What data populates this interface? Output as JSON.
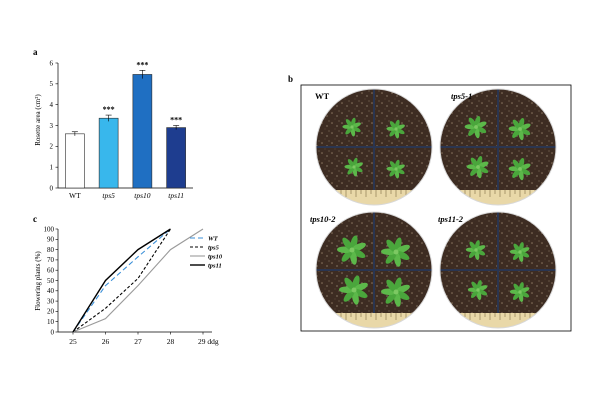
{
  "panels": {
    "a": "a",
    "b": "b",
    "c": "c"
  },
  "photo_labels": [
    "WT",
    "tps5-1",
    "tps10-2",
    "tps11-2"
  ],
  "chart_data": [
    {
      "panel": "a",
      "type": "bar",
      "title": "",
      "xlabel": "",
      "ylabel": "Rosette area (cm²)",
      "ylim": [
        0,
        6
      ],
      "yticks": [
        "0",
        "1",
        "2",
        "3",
        "4",
        "5",
        "6"
      ],
      "categories": [
        "WT",
        "tps5",
        "tps10",
        "tps11"
      ],
      "values": [
        2.6,
        3.35,
        5.45,
        2.9
      ],
      "errors": [
        0.1,
        0.15,
        0.2,
        0.1
      ],
      "significance": [
        "",
        "***",
        "***",
        "***"
      ],
      "colors": [
        "#ffffff",
        "#38b7ec",
        "#1f6fc2",
        "#1e3d8f"
      ]
    },
    {
      "panel": "c",
      "type": "line",
      "title": "",
      "xlabel": "",
      "ylabel": "Flowering plants (%)",
      "x": [
        25,
        26,
        27,
        28,
        29
      ],
      "xticks": [
        "25",
        "26",
        "27",
        "28",
        "29 ddg"
      ],
      "ylim": [
        0,
        100
      ],
      "yticks": [
        "0",
        "10",
        "20",
        "30",
        "40",
        "50",
        "60",
        "70",
        "80",
        "90",
        "100"
      ],
      "legend_position": "right",
      "series": [
        {
          "name": "WT",
          "values": [
            0,
            45,
            73,
            100,
            null
          ],
          "color": "#3a8fd8",
          "dash": "5,3"
        },
        {
          "name": "tps5",
          "values": [
            0,
            23,
            52,
            100,
            null
          ],
          "color": "#000000",
          "dash": "3,2"
        },
        {
          "name": "tps10",
          "values": [
            0,
            13,
            45,
            80,
            100
          ],
          "color": "#9a9a9a",
          "dash": ""
        },
        {
          "name": "tps11",
          "values": [
            0,
            50,
            80,
            100,
            null
          ],
          "color": "#000000",
          "dash": ""
        }
      ]
    }
  ]
}
